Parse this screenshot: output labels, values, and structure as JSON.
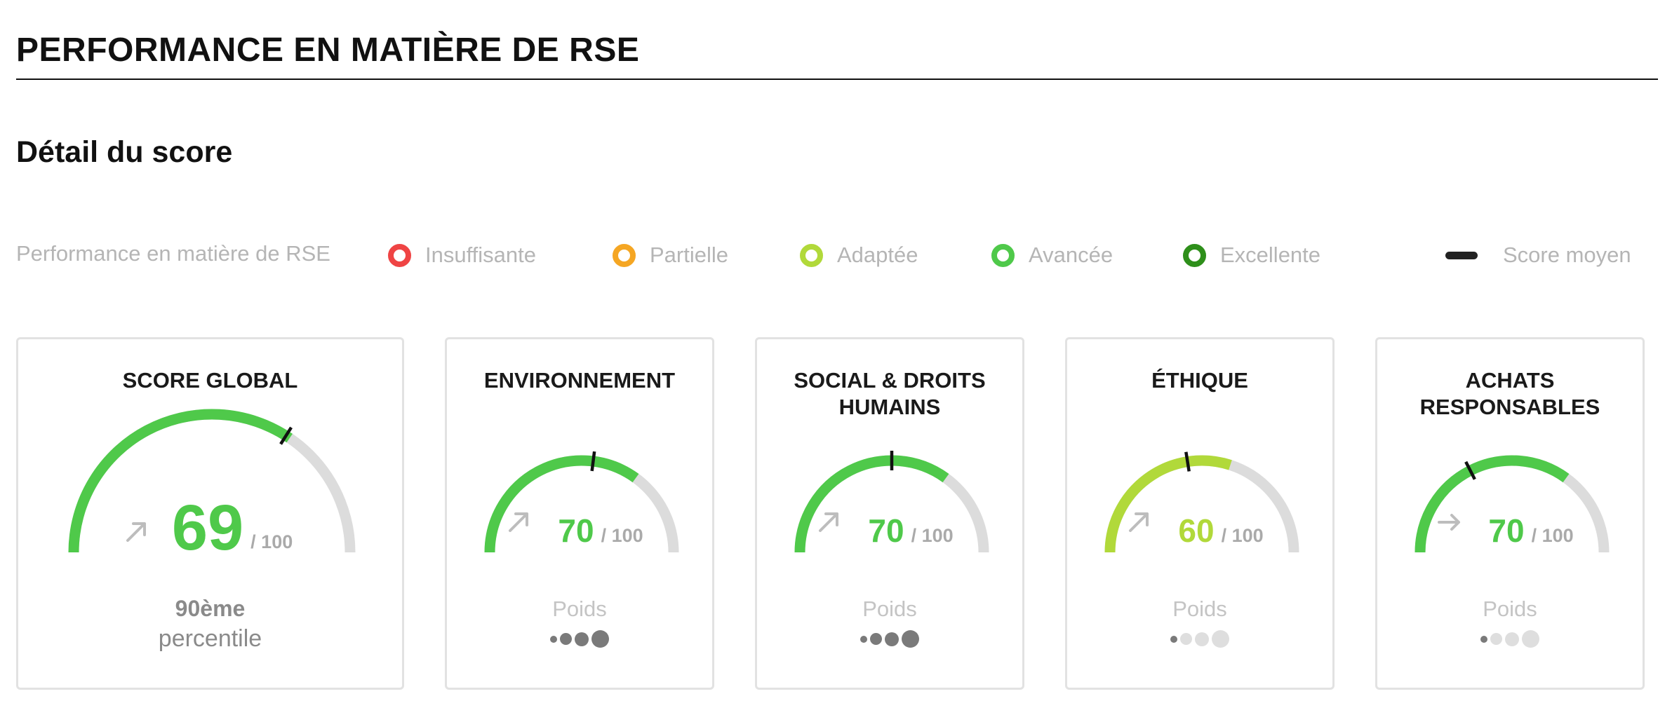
{
  "page": {
    "title": "PERFORMANCE EN MATIÈRE DE RSE",
    "section_title": "Détail du score"
  },
  "legend": {
    "label": "Performance en matière de RSE",
    "items": [
      {
        "label": "Insuffisante",
        "color": "#ef4444"
      },
      {
        "label": "Partielle",
        "color": "#f5a623"
      },
      {
        "label": "Adaptée",
        "color": "#b1d93a"
      },
      {
        "label": "Avancée",
        "color": "#4fc94a"
      },
      {
        "label": "Excellente",
        "color": "#2e8f1a"
      }
    ],
    "average": {
      "label": "Score moyen",
      "color": "#222222"
    }
  },
  "cards": [
    {
      "title": "SCORE GLOBAL",
      "score": "69",
      "score_value": 69,
      "max": "/ 100",
      "color": "#4fc94a",
      "trend_icon": "arrow-up-right-icon",
      "average_value": 68,
      "percentile_value": "90ème",
      "percentile_label": "percentile"
    },
    {
      "title": "ENVIRONNEMENT",
      "score": "70",
      "score_value": 70,
      "max": "/ 100",
      "color": "#4fc94a",
      "trend_icon": "arrow-up-right-icon",
      "average_value": 54,
      "weight_label": "Poids",
      "weight_level": 4
    },
    {
      "title": "SOCIAL & DROITS HUMAINS",
      "score": "70",
      "score_value": 70,
      "max": "/ 100",
      "color": "#4fc94a",
      "trend_icon": "arrow-up-right-icon",
      "average_value": 50,
      "weight_label": "Poids",
      "weight_level": 4
    },
    {
      "title": "ÉTHIQUE",
      "score": "60",
      "score_value": 60,
      "max": "/ 100",
      "color": "#b1d93a",
      "trend_icon": "arrow-up-right-icon",
      "average_value": 45,
      "weight_label": "Poids",
      "weight_level": 1
    },
    {
      "title": "ACHATS RESPONSABLES",
      "score": "70",
      "score_value": 70,
      "max": "/ 100",
      "color": "#4fc94a",
      "trend_icon": "arrow-right-icon",
      "average_value": 35,
      "weight_label": "Poids",
      "weight_level": 1
    }
  ]
}
